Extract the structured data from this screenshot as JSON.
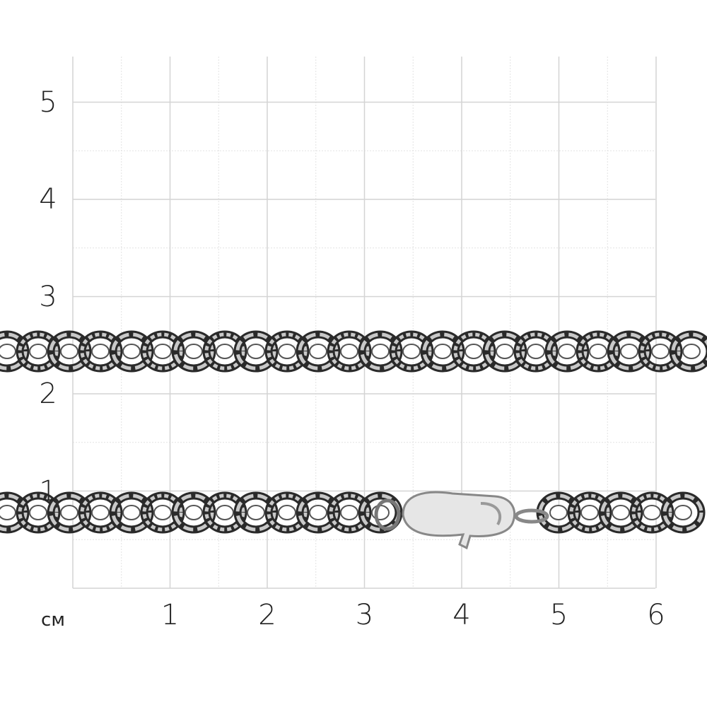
{
  "scale": {
    "unit_label": "см",
    "x_ticks": [
      "1",
      "2",
      "3",
      "4",
      "5",
      "6"
    ],
    "y_ticks": [
      "1",
      "2",
      "3",
      "4",
      "5"
    ],
    "grid": {
      "major_step_cm": 1,
      "minor_step_cm": 0.5,
      "x_range_cm": [
        0,
        6
      ],
      "y_range_cm": [
        0,
        5.5
      ]
    }
  },
  "colors": {
    "grid_major": "#d4d4d4",
    "grid_minor": "#e2e2e2",
    "chain_dark": "#2a2a2a",
    "chain_light": "#c8c8c8",
    "clasp": "#e6e6e6"
  }
}
